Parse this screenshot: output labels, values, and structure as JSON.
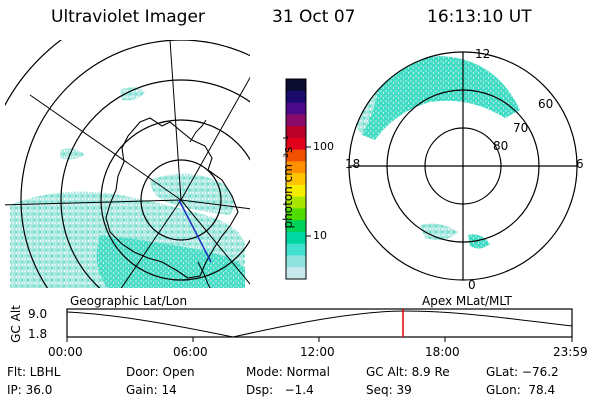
{
  "header": {
    "title": "Ultraviolet Imager",
    "date": "31 Oct 07",
    "time": "16:13:10 UT"
  },
  "left_map": {
    "caption": "Geographic Lat/Lon"
  },
  "right_map": {
    "caption": "Apex MLat/MLT",
    "mlt_labels": {
      "top": "12",
      "left": "18",
      "right": "6",
      "bottom": "0"
    },
    "lat_labels": [
      "60",
      "70",
      "80"
    ]
  },
  "colorbar": {
    "unit_label": "photon cm⁻²s⁻¹",
    "ticks": [
      "100",
      "10"
    ],
    "colors": [
      "#0b0b2e",
      "#1a0a6b",
      "#4a0a8a",
      "#8a0a6a",
      "#b80028",
      "#e0001c",
      "#f05000",
      "#ff9000",
      "#ffc400",
      "#f5ec00",
      "#a8e600",
      "#4fdc00",
      "#00d25a",
      "#00d6a0",
      "#40e0d0",
      "#8fe4e0",
      "#c8e8ee"
    ]
  },
  "altitude_plot": {
    "axis_label": "GC Alt",
    "y_ticks": [
      "9.0",
      "1.8"
    ],
    "x_ticks": [
      "00:00",
      "06:00",
      "12:00",
      "18:00",
      "23:59"
    ],
    "current_time_marker_color": "#e00000"
  },
  "info": {
    "row1": [
      "Flt: LBHL",
      "Door: Open",
      "Mode: Normal",
      "GC Alt: 8.9 Re",
      "GLat: −76.2"
    ],
    "row2": [
      "IP: 36.0",
      "Gain: 14",
      "Dsp:   −1.4",
      "Seq: 39",
      "GLon:  78.4"
    ]
  }
}
